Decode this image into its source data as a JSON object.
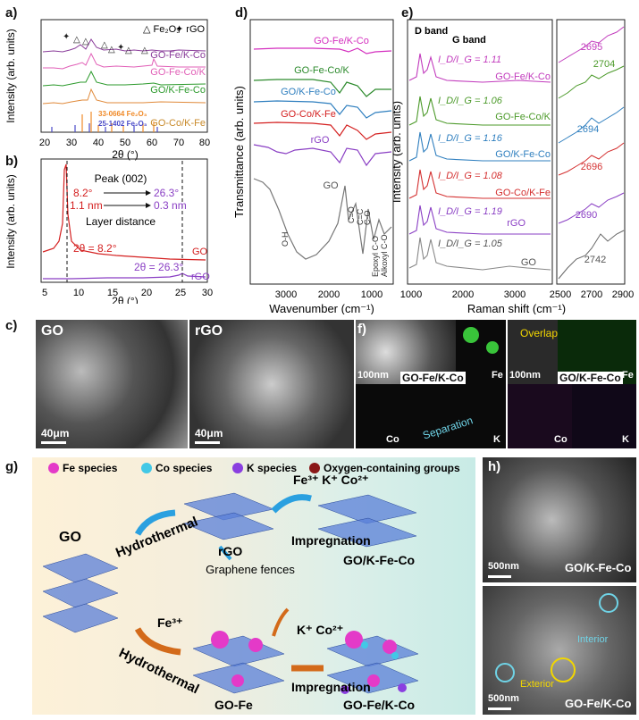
{
  "panels": {
    "a": {
      "label": "a)",
      "ylabel": "Intensity (arb. units)",
      "xlabel": "2θ (°)",
      "xticks": [
        "20",
        "30",
        "40",
        "50",
        "60",
        "70",
        "80"
      ],
      "legend_fe2o3": "Fe₂O₃",
      "legend_rgo": "rGO",
      "traces": [
        "GO-Fe/K-Co",
        "GO-Fe-Co/K",
        "GO/K-Fe-Co",
        "GO-Co/K-Fe"
      ],
      "ref1": "33-0664 Fe₂O₃",
      "ref2": "25-1402 Fe₂O₃",
      "colors": {
        "GO-Fe/K-Co": "#8a3d9a",
        "GO-Fe-Co/K": "#e15fb7",
        "GO/K-Fe-Co": "#2c9a2c",
        "GO-Co/K-Fe": "#e08a3a",
        "ref1": "#f08a28",
        "ref2": "#4a4ac8"
      }
    },
    "b": {
      "label": "b)",
      "ylabel": "Intensity (arb. units)",
      "xlabel": "2θ (°)",
      "xticks": [
        "5",
        "10",
        "15",
        "20",
        "25",
        "30"
      ],
      "peak": "Peak (002)",
      "l1a": "8.2°",
      "l1b": "26.3°",
      "l2a": "1.1 nm",
      "l2b": "0.3 nm",
      "layer": "Layer distance",
      "eq1": "2θ = 8.2°",
      "eq2": "2θ = 26.3°",
      "trace_go": "GO",
      "trace_rgo": "rGO"
    },
    "c": {
      "label": "c)",
      "img1": "GO",
      "img2": "rGO",
      "sb1": "40μm",
      "sb2": "40μm"
    },
    "d": {
      "label": "d)",
      "ylabel": "Transmittance (arb. units)",
      "xlabel": "Wavenumber (cm⁻¹)",
      "xticks": [
        "3000",
        "2000",
        "1000"
      ],
      "traces": [
        "GO-Fe/K-Co",
        "GO-Fe-Co/K",
        "GO/K-Fe-Co",
        "GO-Co/K-Fe",
        "rGO",
        "GO"
      ],
      "bands": [
        "O-H",
        "C=O",
        "C=C",
        "C-O",
        "Epoxyl C-O",
        "Alkoxyl C-O"
      ]
    },
    "e": {
      "label": "e)",
      "ylabel": "Intensity (arb. units)",
      "xlabel": "Raman shift (cm⁻¹)",
      "dband": "D band",
      "gband": "G band",
      "xticks_left": [
        "1000",
        "2000",
        "3000"
      ],
      "xticks_right": [
        "2500",
        "2700",
        "2900"
      ],
      "ratios": [
        {
          "ratio": "I_D/I_G = 1.11",
          "name": "GO-Fe/K-Co",
          "peak2d": "2695",
          "color": "#c23bbd"
        },
        {
          "ratio": "I_D/I_G = 1.06",
          "name": "GO-Fe-Co/K",
          "peak2d": "2704",
          "color": "#4c9a2a"
        },
        {
          "ratio": "I_D/I_G = 1.16",
          "name": "GO/K-Fe-Co",
          "peak2d": "2694",
          "color": "#2f7fbf"
        },
        {
          "ratio": "I_D/I_G = 1.08",
          "name": "GO-Co/K-Fe",
          "peak2d": "2696",
          "color": "#d43030"
        },
        {
          "ratio": "I_D/I_G = 1.19",
          "name": "rGO",
          "peak2d": "2690",
          "color": "#8a3fc4"
        },
        {
          "ratio": "I_D/I_G = 1.05",
          "name": "GO",
          "peak2d": "2742",
          "color": "#555555"
        }
      ]
    },
    "f": {
      "label": "f)",
      "sb1": "100nm",
      "sb2": "100nm",
      "cap1": "GO-Fe/K-Co",
      "cap2": "GO/K-Fe-Co",
      "fe": "Fe",
      "co": "Co",
      "k": "K",
      "fe2": "Fe",
      "co2": "Co",
      "k2": "K",
      "separation": "Separation",
      "overlaps": "Overlaps"
    },
    "g": {
      "label": "g)",
      "legend": [
        "Fe species",
        "Co species",
        "K species",
        "Oxygen-containing groups"
      ],
      "go": "GO",
      "hydro1": "Hydrothermal",
      "rgo": "rGO",
      "ions1": "Fe³⁺ K⁺ Co²⁺",
      "impreg1": "Impregnation",
      "prod1": "GO/K-Fe-Co",
      "fences": "Graphene fences",
      "fe3": "Fe³⁺",
      "hydro2": "Hydrothermal",
      "gofe": "GO-Fe",
      "ions2": "K⁺  Co²⁺",
      "impreg2": "Impregnation",
      "prod2": "GO-Fe/K-Co"
    },
    "h": {
      "label": "h)",
      "sb1": "500nm",
      "cap1": "GO/K-Fe-Co",
      "sb2": "500nm",
      "cap2": "GO-Fe/K-Co",
      "interior": "Interior",
      "exterior": "Exterior"
    }
  }
}
